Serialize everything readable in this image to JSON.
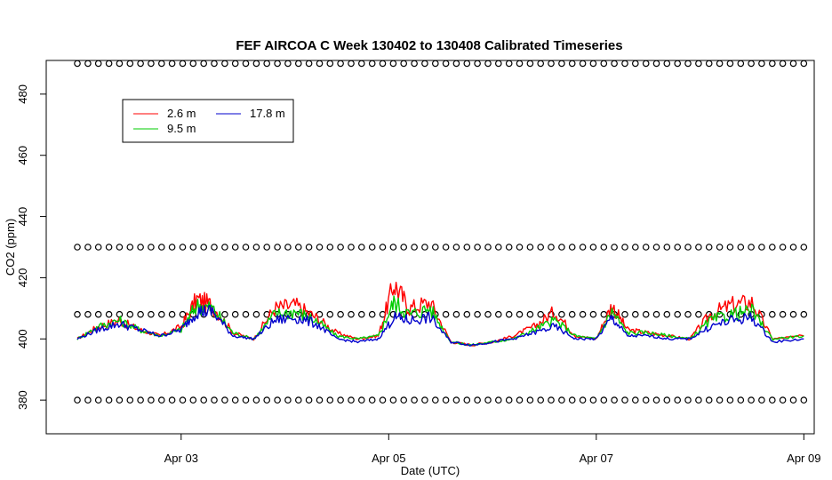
{
  "chart_data": {
    "type": "line",
    "title": "FEF AIRCOA C  Week 130402 to 130408  Calibrated Timeseries",
    "xlabel": "Date (UTC)",
    "ylabel": "CO2 (ppm)",
    "x_unit": "days (Apr)",
    "x_ticks": [
      {
        "value": 3,
        "label": "Apr 03"
      },
      {
        "value": 5,
        "label": "Apr 05"
      },
      {
        "value": 7,
        "label": "Apr 07"
      },
      {
        "value": 9,
        "label": "Apr 09"
      }
    ],
    "y_ticks": [
      380,
      400,
      420,
      440,
      460,
      480
    ],
    "xlim": [
      1.7,
      9.1
    ],
    "ylim": [
      369,
      491
    ],
    "grid": false,
    "legend": {
      "placement": "top-left",
      "entries": [
        {
          "name": "2.6 m",
          "color": "#ff0000"
        },
        {
          "name": "9.5 m",
          "color": "#00cc00"
        },
        {
          "name": "17.8 m",
          "color": "#0000cc"
        }
      ]
    },
    "series": [
      {
        "name": "2.6 m",
        "color": "#ff0000",
        "x": [
          2.0,
          2.2,
          2.4,
          2.6,
          2.8,
          3.0,
          3.15,
          3.3,
          3.5,
          3.7,
          3.9,
          4.1,
          4.3,
          4.5,
          4.7,
          4.9,
          5.05,
          5.2,
          5.4,
          5.6,
          5.8,
          6.0,
          6.2,
          6.4,
          6.6,
          6.8,
          7.0,
          7.15,
          7.3,
          7.5,
          7.7,
          7.9,
          8.1,
          8.3,
          8.5,
          8.7,
          9.0
        ],
        "y": [
          400,
          404,
          406,
          403,
          401,
          404,
          413,
          411,
          402,
          400,
          410,
          411,
          407,
          402,
          400,
          401,
          418,
          410,
          412,
          399,
          398,
          399,
          401,
          404,
          409,
          401,
          400,
          411,
          403,
          402,
          401,
          400,
          408,
          411,
          412,
          400,
          401
        ]
      },
      {
        "name": "9.5 m",
        "color": "#00cc00",
        "x": [
          2.0,
          2.2,
          2.4,
          2.6,
          2.8,
          3.0,
          3.15,
          3.3,
          3.5,
          3.7,
          3.9,
          4.1,
          4.3,
          4.5,
          4.7,
          4.9,
          5.05,
          5.2,
          5.4,
          5.6,
          5.8,
          6.0,
          6.2,
          6.4,
          6.6,
          6.8,
          7.0,
          7.15,
          7.3,
          7.5,
          7.7,
          7.9,
          8.1,
          8.3,
          8.5,
          8.7,
          9.0
        ],
        "y": [
          400,
          404,
          406,
          403,
          401,
          403,
          411,
          410,
          402,
          400,
          408,
          409,
          406,
          401,
          400,
          401,
          412,
          408,
          410,
          399,
          398,
          399,
          400,
          403,
          406,
          401,
          400,
          409,
          402,
          402,
          401,
          400,
          406,
          408,
          409,
          400,
          401
        ]
      },
      {
        "name": "17.8 m",
        "color": "#0000cc",
        "x": [
          2.0,
          2.2,
          2.4,
          2.6,
          2.8,
          3.0,
          3.15,
          3.3,
          3.5,
          3.7,
          3.9,
          4.1,
          4.3,
          4.5,
          4.7,
          4.9,
          5.05,
          5.2,
          5.4,
          5.6,
          5.8,
          6.0,
          6.2,
          6.4,
          6.6,
          6.8,
          7.0,
          7.15,
          7.3,
          7.5,
          7.7,
          7.9,
          8.1,
          8.3,
          8.5,
          8.7,
          9.0
        ],
        "y": [
          400,
          403,
          405,
          403,
          401,
          403,
          409,
          409,
          401,
          400,
          406,
          407,
          405,
          400,
          399,
          400,
          407,
          406,
          407,
          399,
          398,
          399,
          400,
          402,
          404,
          400,
          400,
          407,
          401,
          401,
          400,
          400,
          404,
          406,
          407,
          399,
          400
        ]
      }
    ],
    "reference_points": {
      "marker": "open-circle",
      "levels": [
        490,
        430,
        408,
        380
      ],
      "x_start": 2.0,
      "x_end": 9.0,
      "count_per_level": 70
    }
  }
}
